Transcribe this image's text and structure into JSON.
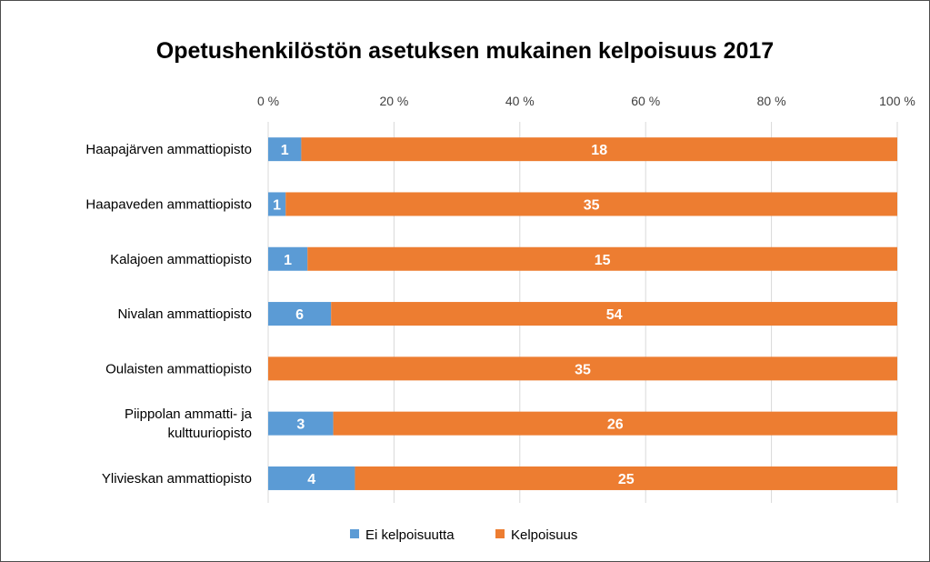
{
  "chart_data": {
    "type": "bar",
    "orientation": "horizontal",
    "stacked": "percent",
    "title": "Opetushenkilöstön asetuksen mukainen kelpoisuus 2017",
    "categories": [
      [
        "Haapajärven ammattiopisto"
      ],
      [
        "Haapaveden ammattiopisto"
      ],
      [
        "Kalajoen ammattiopisto"
      ],
      [
        "Nivalan ammattiopisto"
      ],
      [
        "Oulaisten ammattiopisto"
      ],
      [
        "Piippolan ammatti- ja",
        "kulttuuriopisto"
      ],
      [
        "Ylivieskan ammattiopisto"
      ]
    ],
    "series": [
      {
        "name": "Ei kelpoisuutta",
        "color": "#5b9bd5",
        "values": [
          1,
          1,
          1,
          6,
          0,
          3,
          4
        ],
        "labels": [
          "1",
          "1",
          "1",
          "6",
          "",
          "3",
          "4"
        ]
      },
      {
        "name": "Kelpoisuus",
        "color": "#ed7d31",
        "values": [
          18,
          35,
          15,
          54,
          35,
          26,
          25
        ],
        "labels": [
          "18",
          "35",
          "15",
          "54",
          "35",
          "26",
          "25"
        ]
      }
    ],
    "x_ticks": [
      "0 %",
      "20 %",
      "40 %",
      "60 %",
      "80 %",
      "100 %"
    ],
    "xlim": [
      0,
      100
    ],
    "grid": true,
    "legend_position": "bottom"
  }
}
